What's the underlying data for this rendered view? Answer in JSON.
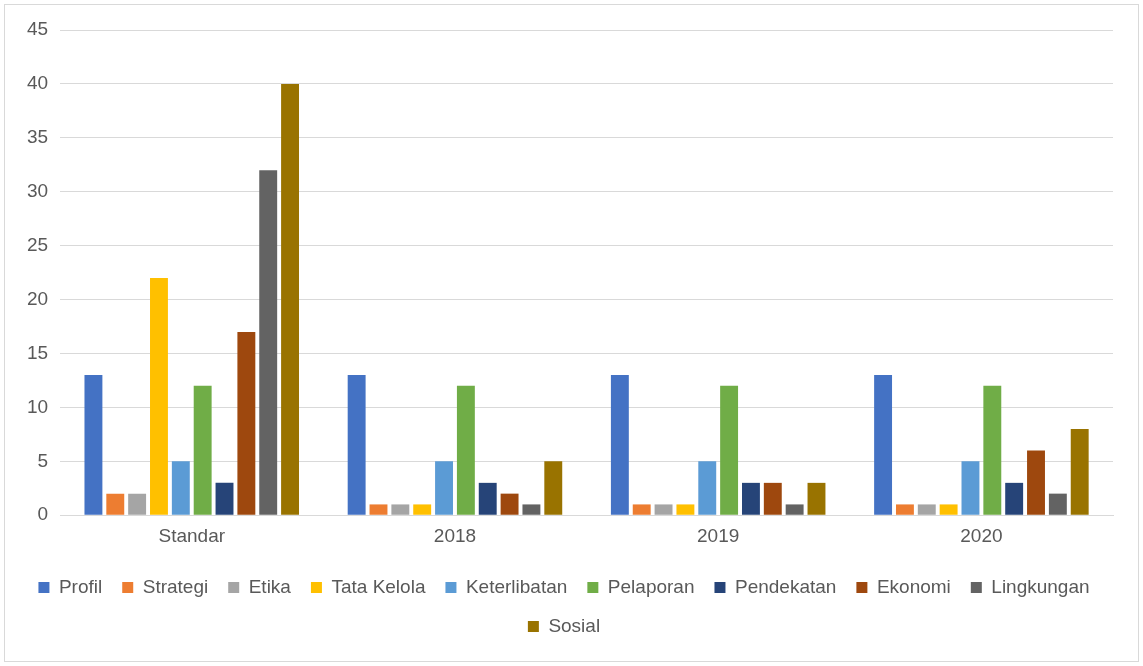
{
  "chart_data": {
    "type": "bar",
    "categories": [
      "Standar",
      "2018",
      "2019",
      "2020"
    ],
    "series": [
      {
        "name": "Profil",
        "color": "#4472c4",
        "values": [
          13,
          13,
          13,
          13
        ]
      },
      {
        "name": "Strategi",
        "color": "#ed7d31",
        "values": [
          2,
          1,
          1,
          1
        ]
      },
      {
        "name": "Etika",
        "color": "#a5a5a5",
        "values": [
          2,
          1,
          1,
          1
        ]
      },
      {
        "name": "Tata Kelola",
        "color": "#ffc000",
        "values": [
          22,
          1,
          1,
          1
        ]
      },
      {
        "name": "Keterlibatan",
        "color": "#5b9bd5",
        "values": [
          5,
          5,
          5,
          5
        ]
      },
      {
        "name": "Pelaporan",
        "color": "#70ad47",
        "values": [
          12,
          12,
          12,
          12
        ]
      },
      {
        "name": "Pendekatan",
        "color": "#264478",
        "values": [
          3,
          3,
          3,
          3
        ]
      },
      {
        "name": "Ekonomi",
        "color": "#9e480e",
        "values": [
          17,
          2,
          3,
          6
        ]
      },
      {
        "name": "Lingkungan",
        "color": "#636363",
        "values": [
          32,
          1,
          1,
          2
        ]
      },
      {
        "name": "Sosial",
        "color": "#997300",
        "values": [
          40,
          5,
          3,
          8
        ]
      }
    ],
    "ylim": [
      0,
      45
    ],
    "yticks": [
      0,
      5,
      10,
      15,
      20,
      25,
      30,
      35,
      40,
      45
    ],
    "grid": "y",
    "legend": "bottom"
  }
}
